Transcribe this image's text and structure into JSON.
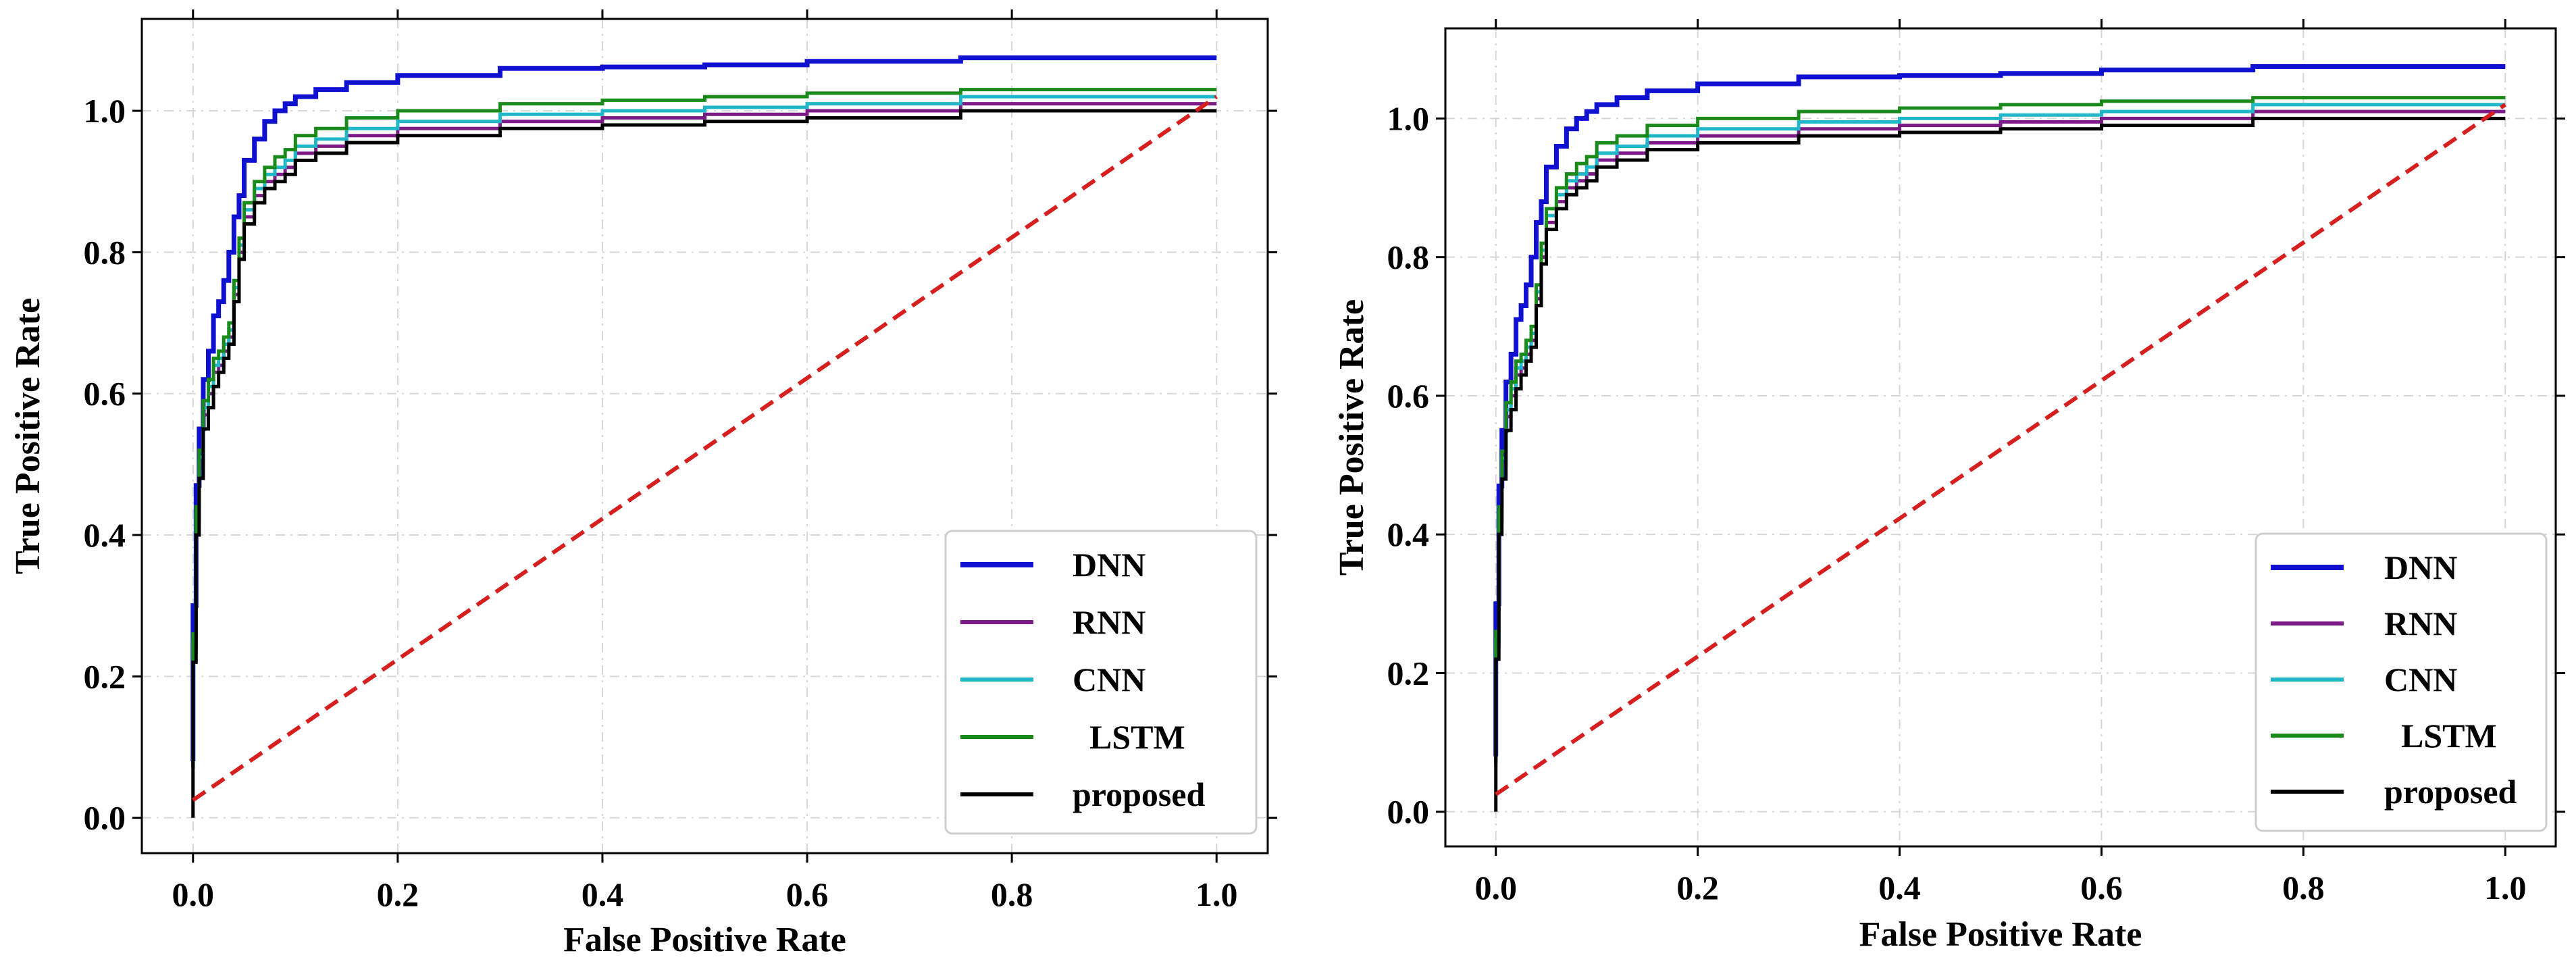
{
  "chart_data": [
    {
      "type": "line",
      "title": "",
      "xlabel": "False Positive Rate",
      "ylabel": "True Positive Rate",
      "xlim": [
        -0.05,
        1.05
      ],
      "ylim": [
        -0.05,
        1.13
      ],
      "x_ticks": [
        0.0,
        0.2,
        0.4,
        0.6,
        0.8,
        1.0
      ],
      "y_ticks": [
        0.0,
        0.2,
        0.4,
        0.6,
        0.8,
        1.0
      ],
      "x_tick_labels": [
        "0.0",
        "0.2",
        "0.4",
        "0.6",
        "0.8",
        "1.0"
      ],
      "y_tick_labels": [
        "0.0",
        "0.2",
        "0.4",
        "0.6",
        "0.8",
        "1.0"
      ],
      "grid": true,
      "legend_position": "lower-right",
      "series": [
        {
          "name": "DNN",
          "color": "#1010d0",
          "x": [
            0,
            0.003,
            0.006,
            0.01,
            0.015,
            0.02,
            0.025,
            0.03,
            0.035,
            0.04,
            0.045,
            0.05,
            0.06,
            0.07,
            0.08,
            0.09,
            0.1,
            0.12,
            0.15,
            0.2,
            0.3,
            0.4,
            0.5,
            0.6,
            0.75,
            0.8,
            1.0
          ],
          "y": [
            0.08,
            0.3,
            0.47,
            0.55,
            0.62,
            0.66,
            0.71,
            0.73,
            0.76,
            0.8,
            0.85,
            0.88,
            0.93,
            0.96,
            0.985,
            1.0,
            1.01,
            1.02,
            1.03,
            1.04,
            1.05,
            1.06,
            1.062,
            1.065,
            1.07,
            1.075,
            1.075
          ]
        },
        {
          "name": "RNN",
          "color": "#7b1a86",
          "x": [
            0,
            0.003,
            0.006,
            0.01,
            0.015,
            0.02,
            0.025,
            0.03,
            0.035,
            0.04,
            0.045,
            0.05,
            0.06,
            0.07,
            0.08,
            0.09,
            0.1,
            0.12,
            0.15,
            0.2,
            0.3,
            0.4,
            0.5,
            0.6,
            0.75,
            0.8,
            1.0
          ],
          "y": [
            0.07,
            0.24,
            0.42,
            0.5,
            0.57,
            0.6,
            0.63,
            0.64,
            0.66,
            0.68,
            0.74,
            0.8,
            0.85,
            0.88,
            0.9,
            0.91,
            0.92,
            0.94,
            0.95,
            0.965,
            0.975,
            0.985,
            0.99,
            0.995,
            1.0,
            1.01,
            1.01
          ]
        },
        {
          "name": "CNN",
          "color": "#20b8c8",
          "x": [
            0,
            0.003,
            0.006,
            0.01,
            0.015,
            0.02,
            0.025,
            0.03,
            0.035,
            0.04,
            0.045,
            0.05,
            0.06,
            0.07,
            0.08,
            0.09,
            0.1,
            0.12,
            0.15,
            0.2,
            0.3,
            0.4,
            0.5,
            0.6,
            0.75,
            0.8,
            1.0
          ],
          "y": [
            0.07,
            0.25,
            0.43,
            0.51,
            0.58,
            0.61,
            0.64,
            0.65,
            0.67,
            0.69,
            0.75,
            0.81,
            0.86,
            0.89,
            0.91,
            0.92,
            0.93,
            0.95,
            0.96,
            0.975,
            0.985,
            0.995,
            1.0,
            1.005,
            1.01,
            1.02,
            1.02
          ]
        },
        {
          "name": "  LSTM",
          "color": "#1a8a1a",
          "x": [
            0,
            0.003,
            0.006,
            0.01,
            0.015,
            0.02,
            0.025,
            0.03,
            0.035,
            0.04,
            0.045,
            0.05,
            0.06,
            0.07,
            0.08,
            0.09,
            0.1,
            0.12,
            0.15,
            0.2,
            0.3,
            0.4,
            0.5,
            0.6,
            0.75,
            0.8,
            1.0
          ],
          "y": [
            0.07,
            0.26,
            0.44,
            0.52,
            0.59,
            0.62,
            0.65,
            0.66,
            0.68,
            0.7,
            0.76,
            0.82,
            0.87,
            0.9,
            0.92,
            0.935,
            0.945,
            0.965,
            0.975,
            0.99,
            1.0,
            1.01,
            1.015,
            1.02,
            1.025,
            1.03,
            1.03
          ]
        },
        {
          "name": "proposed",
          "color": "#000000",
          "x": [
            0,
            0.003,
            0.006,
            0.01,
            0.015,
            0.02,
            0.025,
            0.03,
            0.035,
            0.04,
            0.045,
            0.05,
            0.06,
            0.07,
            0.08,
            0.09,
            0.1,
            0.12,
            0.15,
            0.2,
            0.3,
            0.4,
            0.5,
            0.6,
            0.75,
            0.8,
            1.0
          ],
          "y": [
            0.0,
            0.22,
            0.4,
            0.48,
            0.55,
            0.58,
            0.61,
            0.63,
            0.65,
            0.67,
            0.73,
            0.79,
            0.84,
            0.87,
            0.89,
            0.9,
            0.91,
            0.93,
            0.94,
            0.955,
            0.965,
            0.975,
            0.98,
            0.985,
            0.99,
            1.0,
            1.0
          ]
        },
        {
          "name": "",
          "color": "#d62020",
          "dashed": true,
          "x": [
            0,
            1.0
          ],
          "y": [
            0.025,
            1.02
          ]
        }
      ]
    },
    {
      "type": "line",
      "title": "",
      "xlabel": "False Positive Rate",
      "ylabel": "True Positive Rate",
      "xlim": [
        -0.05,
        1.05
      ],
      "ylim": [
        -0.05,
        1.13
      ],
      "x_ticks": [
        0.0,
        0.2,
        0.4,
        0.6,
        0.8,
        1.0
      ],
      "y_ticks": [
        0.0,
        0.2,
        0.4,
        0.6,
        0.8,
        1.0
      ],
      "x_tick_labels": [
        "0.0",
        "0.2",
        "0.4",
        "0.6",
        "0.8",
        "1.0"
      ],
      "y_tick_labels": [
        "0.0",
        "0.2",
        "0.4",
        "0.6",
        "0.8",
        "1.0"
      ],
      "grid": true,
      "legend_position": "lower-right",
      "series": [
        {
          "name": "DNN",
          "color": "#1010d0",
          "x": [
            0,
            0.003,
            0.006,
            0.01,
            0.015,
            0.02,
            0.025,
            0.03,
            0.035,
            0.04,
            0.045,
            0.05,
            0.06,
            0.07,
            0.08,
            0.09,
            0.1,
            0.12,
            0.15,
            0.2,
            0.3,
            0.4,
            0.5,
            0.6,
            0.75,
            0.8,
            1.0
          ],
          "y": [
            0.08,
            0.3,
            0.47,
            0.55,
            0.62,
            0.66,
            0.71,
            0.73,
            0.76,
            0.8,
            0.85,
            0.88,
            0.93,
            0.96,
            0.985,
            1.0,
            1.01,
            1.02,
            1.03,
            1.04,
            1.05,
            1.06,
            1.062,
            1.065,
            1.07,
            1.075,
            1.075
          ]
        },
        {
          "name": "RNN",
          "color": "#7b1a86",
          "x": [
            0,
            0.003,
            0.006,
            0.01,
            0.015,
            0.02,
            0.025,
            0.03,
            0.035,
            0.04,
            0.045,
            0.05,
            0.06,
            0.07,
            0.08,
            0.09,
            0.1,
            0.12,
            0.15,
            0.2,
            0.3,
            0.4,
            0.5,
            0.6,
            0.75,
            0.8,
            1.0
          ],
          "y": [
            0.07,
            0.24,
            0.42,
            0.5,
            0.57,
            0.6,
            0.63,
            0.64,
            0.66,
            0.68,
            0.74,
            0.8,
            0.85,
            0.88,
            0.9,
            0.91,
            0.92,
            0.94,
            0.95,
            0.965,
            0.975,
            0.985,
            0.99,
            0.995,
            1.0,
            1.01,
            1.01
          ]
        },
        {
          "name": "CNN",
          "color": "#20b8c8",
          "x": [
            0,
            0.003,
            0.006,
            0.01,
            0.015,
            0.02,
            0.025,
            0.03,
            0.035,
            0.04,
            0.045,
            0.05,
            0.06,
            0.07,
            0.08,
            0.09,
            0.1,
            0.12,
            0.15,
            0.2,
            0.3,
            0.4,
            0.5,
            0.6,
            0.75,
            0.8,
            1.0
          ],
          "y": [
            0.07,
            0.25,
            0.43,
            0.51,
            0.58,
            0.61,
            0.64,
            0.65,
            0.67,
            0.69,
            0.75,
            0.81,
            0.86,
            0.89,
            0.91,
            0.92,
            0.93,
            0.95,
            0.96,
            0.975,
            0.985,
            0.995,
            1.0,
            1.005,
            1.01,
            1.02,
            1.02
          ]
        },
        {
          "name": "  LSTM",
          "color": "#1a8a1a",
          "x": [
            0,
            0.003,
            0.006,
            0.01,
            0.015,
            0.02,
            0.025,
            0.03,
            0.035,
            0.04,
            0.045,
            0.05,
            0.06,
            0.07,
            0.08,
            0.09,
            0.1,
            0.12,
            0.15,
            0.2,
            0.3,
            0.4,
            0.5,
            0.6,
            0.75,
            0.8,
            1.0
          ],
          "y": [
            0.07,
            0.26,
            0.44,
            0.52,
            0.59,
            0.62,
            0.65,
            0.66,
            0.68,
            0.7,
            0.76,
            0.82,
            0.87,
            0.9,
            0.92,
            0.935,
            0.945,
            0.965,
            0.975,
            0.99,
            1.0,
            1.01,
            1.015,
            1.02,
            1.025,
            1.03,
            1.03
          ]
        },
        {
          "name": "proposed",
          "color": "#000000",
          "x": [
            0,
            0.003,
            0.006,
            0.01,
            0.015,
            0.02,
            0.025,
            0.03,
            0.035,
            0.04,
            0.045,
            0.05,
            0.06,
            0.07,
            0.08,
            0.09,
            0.1,
            0.12,
            0.15,
            0.2,
            0.3,
            0.4,
            0.5,
            0.6,
            0.75,
            0.8,
            1.0
          ],
          "y": [
            0.0,
            0.22,
            0.4,
            0.48,
            0.55,
            0.58,
            0.61,
            0.63,
            0.65,
            0.67,
            0.73,
            0.79,
            0.84,
            0.87,
            0.89,
            0.9,
            0.91,
            0.93,
            0.94,
            0.955,
            0.965,
            0.975,
            0.98,
            0.985,
            0.99,
            1.0,
            1.0
          ]
        },
        {
          "name": "",
          "color": "#d62020",
          "dashed": true,
          "x": [
            0,
            1.0
          ],
          "y": [
            0.025,
            1.02
          ]
        }
      ]
    }
  ]
}
